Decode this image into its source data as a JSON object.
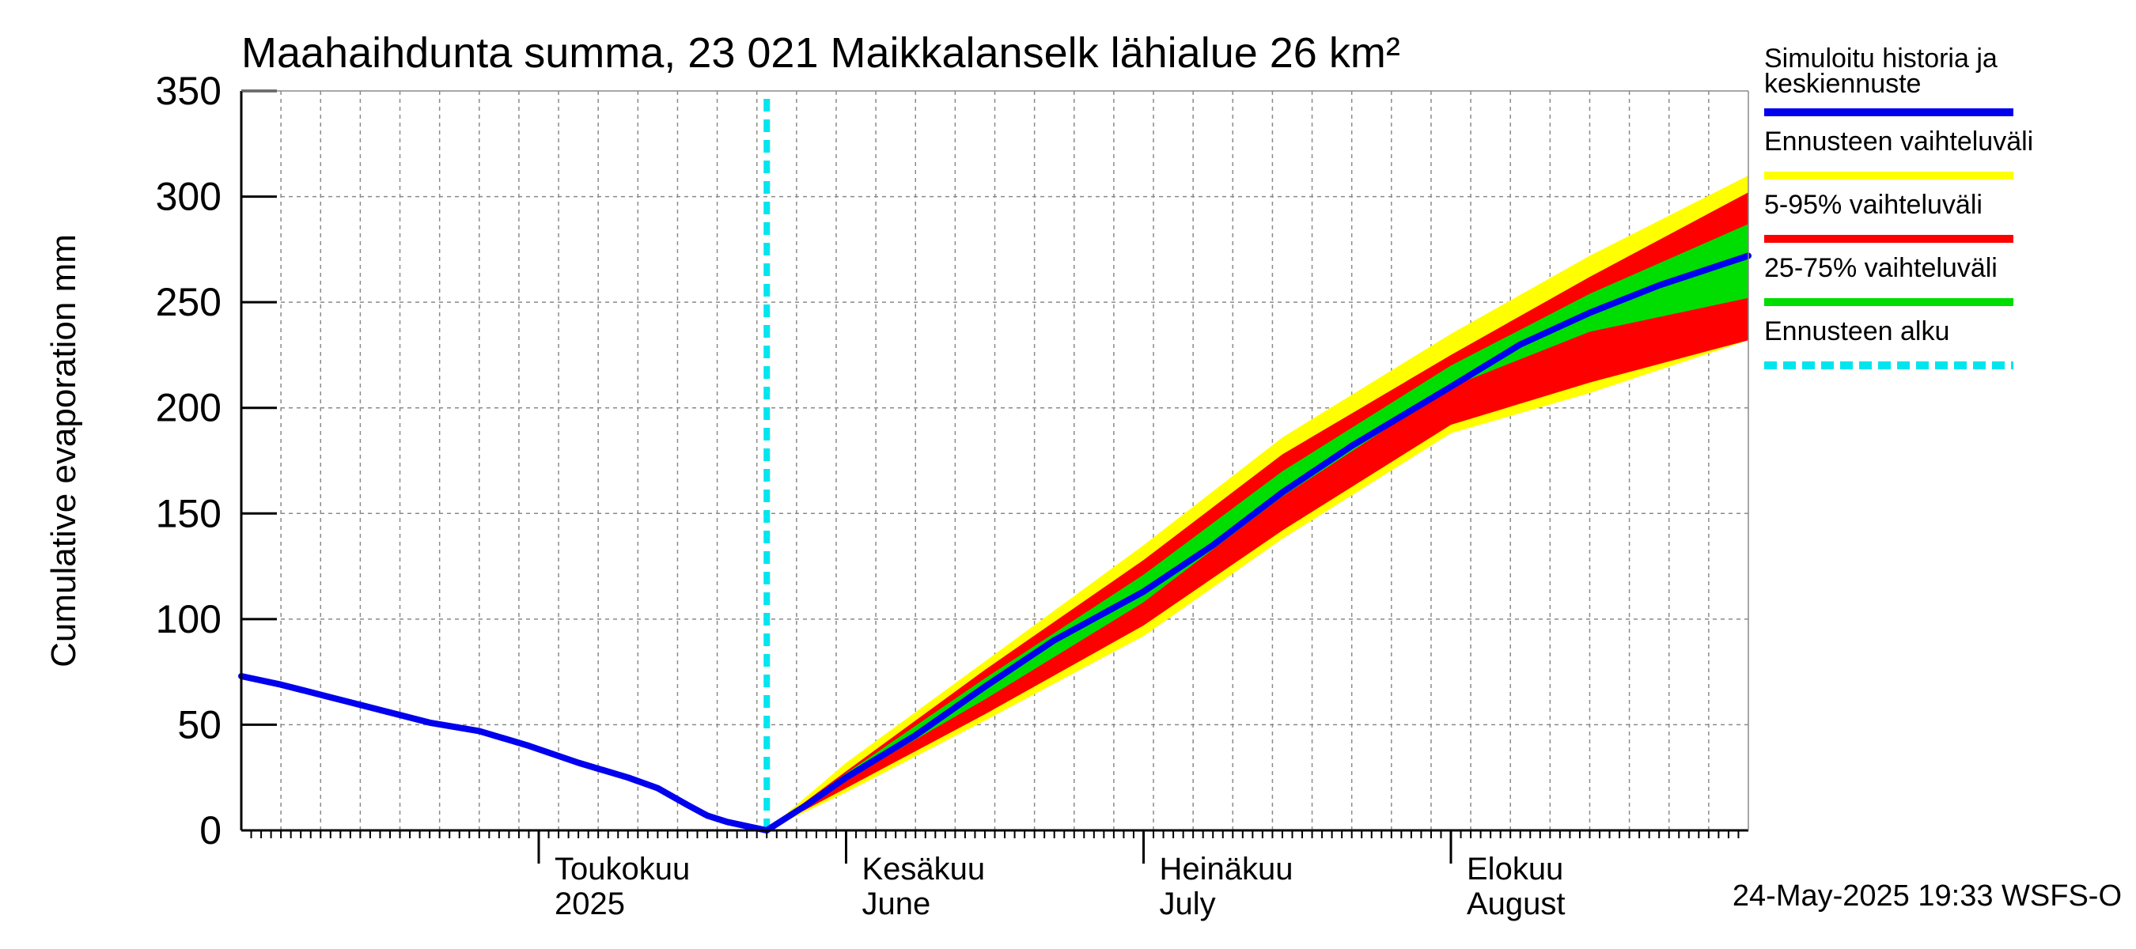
{
  "chart_data": {
    "type": "area",
    "title": "Maahaihdunta summa, 23 021 Maikkalanselk lähialue 26 km²",
    "ylabel": "Cumulative evaporation   mm",
    "xlabel": "",
    "x_range": [
      "2025-04-01",
      "2025-08-31"
    ],
    "ylim": [
      0,
      350
    ],
    "yticks": [
      0,
      50,
      100,
      150,
      200,
      250,
      300,
      350
    ],
    "grid": true,
    "legend_position": "right",
    "forecast_start": "2025-05-24",
    "month_labels": [
      {
        "date": "2025-05-01",
        "line1": "Toukokuu",
        "line2": "2025"
      },
      {
        "date": "2025-06-01",
        "line1": "Kesäkuu",
        "line2": "June"
      },
      {
        "date": "2025-07-01",
        "line1": "Heinäkuu",
        "line2": "July"
      },
      {
        "date": "2025-08-01",
        "line1": "Elokuu",
        "line2": "August"
      }
    ],
    "history": {
      "name": "Simuloitu historia ja keskiennuste",
      "color": "#0000ee",
      "x": [
        "2025-04-01",
        "2025-04-05",
        "2025-04-10",
        "2025-04-15",
        "2025-04-20",
        "2025-04-25",
        "2025-04-30",
        "2025-05-05",
        "2025-05-10",
        "2025-05-13",
        "2025-05-16",
        "2025-05-18",
        "2025-05-20",
        "2025-05-22",
        "2025-05-24"
      ],
      "y": [
        73,
        69,
        63,
        57,
        51,
        47,
        40,
        32,
        25,
        20,
        12,
        7,
        4,
        2,
        0
      ]
    },
    "bands": [
      {
        "name": "Ennusteen vaihteluväli",
        "color": "#ffff00",
        "x": [
          "2025-05-24",
          "2025-06-01",
          "2025-06-15",
          "2025-07-01",
          "2025-07-15",
          "2025-08-01",
          "2025-08-15",
          "2025-08-31"
        ],
        "low": [
          0,
          18,
          52,
          92,
          138,
          188,
          207,
          232
        ],
        "high": [
          0,
          32,
          80,
          135,
          186,
          235,
          272,
          310
        ]
      },
      {
        "name": "5-95% vaihteluväli",
        "color": "#ff0000",
        "x": [
          "2025-05-24",
          "2025-06-01",
          "2025-06-15",
          "2025-07-01",
          "2025-07-15",
          "2025-08-01",
          "2025-08-15",
          "2025-08-31"
        ],
        "low": [
          0,
          20,
          55,
          97,
          142,
          192,
          212,
          232
        ],
        "high": [
          0,
          28,
          76,
          128,
          178,
          225,
          262,
          302
        ]
      },
      {
        "name": "25-75% vaihteluväli",
        "color": "#00dd00",
        "x": [
          "2025-05-24",
          "2025-06-01",
          "2025-06-15",
          "2025-07-01",
          "2025-07-15",
          "2025-08-01",
          "2025-08-15",
          "2025-08-31"
        ],
        "low": [
          0,
          24,
          62,
          108,
          158,
          210,
          236,
          252
        ],
        "high": [
          0,
          27,
          72,
          121,
          170,
          220,
          254,
          287
        ]
      }
    ],
    "median_forecast": {
      "name": "Simuloitu historia ja keskiennuste",
      "color": "#0000ee",
      "x": [
        "2025-05-24",
        "2025-05-28",
        "2025-06-01",
        "2025-06-08",
        "2025-06-15",
        "2025-06-22",
        "2025-07-01",
        "2025-07-08",
        "2025-07-15",
        "2025-07-22",
        "2025-08-01",
        "2025-08-08",
        "2025-08-15",
        "2025-08-22",
        "2025-08-31"
      ],
      "y": [
        0,
        12,
        25,
        45,
        68,
        90,
        113,
        135,
        160,
        182,
        210,
        230,
        245,
        258,
        272
      ]
    },
    "legend": [
      {
        "label": "Simuloitu historia ja keskiennuste",
        "color": "#0000ee",
        "style": "solid"
      },
      {
        "label": "Ennusteen vaihteluväli",
        "color": "#ffff00",
        "style": "solid"
      },
      {
        "label": "5-95% vaihteluväli",
        "color": "#ff0000",
        "style": "solid"
      },
      {
        "label": "25-75% vaihteluväli",
        "color": "#00dd00",
        "style": "solid"
      },
      {
        "label": "Ennusteen alku",
        "color": "#00e5ee",
        "style": "dashed"
      }
    ],
    "footer": "24-May-2025 19:33 WSFS-O"
  }
}
